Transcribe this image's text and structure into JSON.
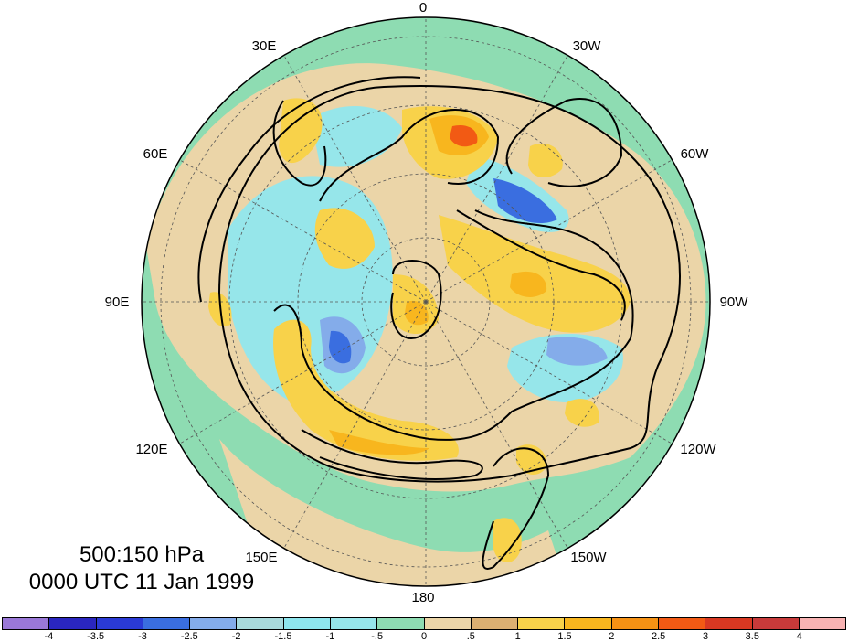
{
  "map": {
    "longitude_labels": [
      "0",
      "30W",
      "60W",
      "90W",
      "120W",
      "150W",
      "180",
      "150E",
      "120E",
      "90E",
      "60E",
      "30E"
    ],
    "projection": "polar stereographic, north pole",
    "contour_color": "#000000"
  },
  "caption": {
    "level": "500:150 hPa",
    "time": "0000 UTC 11 Jan 1999"
  },
  "colorbar": {
    "labels": [
      "-4",
      "-3.5",
      "-3",
      "-2.5",
      "-2",
      "-1.5",
      "-1",
      "-.5",
      "0",
      ".5",
      "1",
      "1.5",
      "2",
      "2.5",
      "3",
      "3.5",
      "4"
    ],
    "colors": [
      "#9a78d8",
      "#2a26c0",
      "#2a3ad6",
      "#3a6ee0",
      "#84acea",
      "#a8dadc",
      "#8ee6ee",
      "#96e6ea",
      "#8edcb2",
      "#ebd5a8",
      "#dcb072",
      "#f8d24a",
      "#f8b61e",
      "#f69214",
      "#f25a14",
      "#d83822",
      "#c83a3a",
      "#f8b2b2"
    ]
  }
}
